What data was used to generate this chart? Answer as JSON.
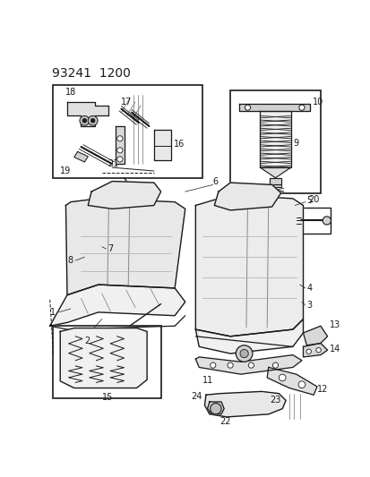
{
  "title": "93241  1200",
  "bg_color": "#ffffff",
  "line_color": "#1a1a1a",
  "fig_width": 4.14,
  "fig_height": 5.33,
  "dpi": 100
}
